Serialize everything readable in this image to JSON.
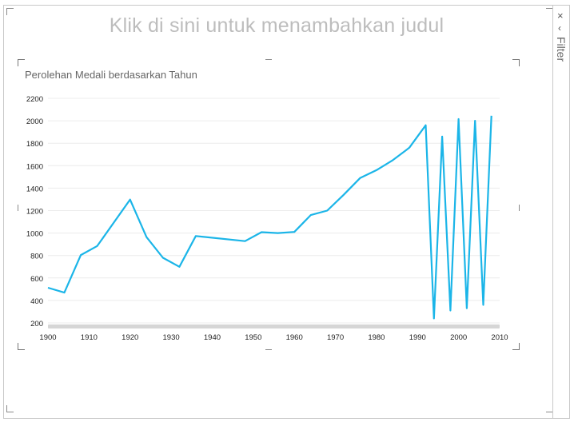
{
  "report": {
    "title_placeholder": "Klik di sini untuk menambahkan judul"
  },
  "filter_pane": {
    "close_glyph": "×",
    "expand_glyph": "‹",
    "label": "Filter"
  },
  "colors": {
    "line": "#1bb5e8",
    "gridline": "#ececec",
    "axis_text": "#222222",
    "scrollbar": "#d6d6d6"
  },
  "chart_data": {
    "type": "line",
    "title": "Perolehan Medali berdasarkan Tahun",
    "xlabel": "",
    "ylabel": "",
    "xlim": [
      1900,
      2010
    ],
    "ylim": [
      200,
      2200
    ],
    "x_ticks": [
      1900,
      1910,
      1920,
      1930,
      1940,
      1950,
      1960,
      1970,
      1980,
      1990,
      2000,
      2010
    ],
    "y_ticks": [
      200,
      400,
      600,
      800,
      1000,
      1200,
      1400,
      1600,
      1800,
      2000,
      2200
    ],
    "grid": true,
    "series": [
      {
        "x": [
          1900,
          1904,
          1908,
          1912,
          1920,
          1924,
          1928,
          1932,
          1936,
          1948,
          1952,
          1956,
          1960,
          1964,
          1968,
          1972,
          1976,
          1980,
          1984,
          1988,
          1992,
          1994,
          1996,
          1998,
          2000,
          2002,
          2004,
          2006,
          2008
        ],
        "y": [
          513,
          470,
          804,
          885,
          1298,
          964,
          780,
          700,
          974,
          928,
          1008,
          1000,
          1010,
          1160,
          1200,
          1340,
          1490,
          1560,
          1650,
          1760,
          1960,
          240,
          1860,
          310,
          2015,
          330,
          2000,
          360,
          2045
        ]
      }
    ]
  }
}
